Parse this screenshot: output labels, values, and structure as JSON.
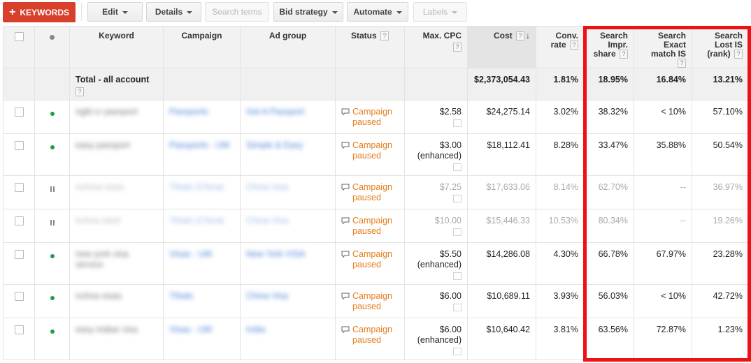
{
  "toolbar": {
    "keywords_label": "KEYWORDS",
    "edit_label": "Edit",
    "details_label": "Details",
    "search_terms_label": "Search terms",
    "bid_strategy_label": "Bid strategy",
    "automate_label": "Automate",
    "labels_label": "Labels",
    "accent_color": "#d9402b"
  },
  "table": {
    "headers": {
      "keyword": "Keyword",
      "campaign": "Campaign",
      "ad_group": "Ad group",
      "status": "Status",
      "max_cpc_l1": "Max. CPC",
      "cost": "Cost",
      "conv_rate_l1": "Conv.",
      "conv_rate_l2": "rate",
      "search_impr_share_l1": "Search",
      "search_impr_share_l2": "Impr.",
      "search_impr_share_l3": "share",
      "search_exact_match_is_l1": "Search",
      "search_exact_match_is_l2": "Exact",
      "search_exact_match_is_l3": "match IS",
      "search_lost_is_l1": "Search",
      "search_lost_is_l2": "Lost IS",
      "search_lost_is_l3": "(rank)",
      "help_glyph": "?"
    },
    "total": {
      "label": "Total - all account",
      "cost": "$2,373,054.43",
      "conv_rate": "1.81%",
      "search_impr_share": "18.95%",
      "search_exact_match_is": "16.84%",
      "search_lost_is_rank": "13.21%"
    },
    "rows": [
      {
        "state": "enabled",
        "keyword": "ngld cr passport",
        "campaign": "Passports",
        "ad_group": "Get A Passport",
        "status": "Campaign paused",
        "max_cpc": "$2.58",
        "max_cpc_note": "",
        "cost": "$24,275.14",
        "conv_rate": "3.02%",
        "search_impr_share": "38.32%",
        "search_exact_match_is": "< 10%",
        "search_lost_is_rank": "57.10%"
      },
      {
        "state": "enabled",
        "keyword": "easy passport",
        "campaign": "Passports - UM",
        "ad_group": "Simple & Easy",
        "status": "Campaign paused",
        "max_cpc": "$3.00",
        "max_cpc_note": "(enhanced)",
        "cost": "$18,112.41",
        "conv_rate": "8.28%",
        "search_impr_share": "33.47%",
        "search_exact_match_is": "35.88%",
        "search_lost_is_rank": "50.54%"
      },
      {
        "state": "paused",
        "keyword": "nchma visas",
        "campaign": "Tthals (China)",
        "ad_group": "China Visa",
        "status": "Campaign paused",
        "max_cpc": "$7.25",
        "max_cpc_note": "",
        "cost": "$17,633.06",
        "conv_rate": "8.14%",
        "search_impr_share": "62.70%",
        "search_exact_match_is": "--",
        "search_lost_is_rank": "36.97%"
      },
      {
        "state": "paused",
        "keyword": "hchna stasf",
        "campaign": "Tthals (China)",
        "ad_group": "China Visa",
        "status": "Campaign paused",
        "max_cpc": "$10.00",
        "max_cpc_note": "",
        "cost": "$15,446.33",
        "conv_rate": "10.53%",
        "search_impr_share": "80.34%",
        "search_exact_match_is": "--",
        "search_lost_is_rank": "19.26%"
      },
      {
        "state": "enabled",
        "keyword": "new york visa service",
        "campaign": "Visas - UM",
        "ad_group": "New York VISA",
        "status": "Campaign paused",
        "max_cpc": "$5.50",
        "max_cpc_note": "(enhanced)",
        "cost": "$14,286.08",
        "conv_rate": "4.30%",
        "search_impr_share": "66.78%",
        "search_exact_match_is": "67.97%",
        "search_lost_is_rank": "23.28%"
      },
      {
        "state": "enabled",
        "keyword": "nchna visas",
        "campaign": "Tthals",
        "ad_group": "China Visa",
        "status": "Campaign paused",
        "max_cpc": "$6.00",
        "max_cpc_note": "",
        "cost": "$10,689.11",
        "conv_rate": "3.93%",
        "search_impr_share": "56.03%",
        "search_exact_match_is": "< 10%",
        "search_lost_is_rank": "42.72%"
      },
      {
        "state": "enabled",
        "keyword": "easy indian visa",
        "campaign": "Visas - UM",
        "ad_group": "India",
        "status": "Campaign paused",
        "max_cpc": "$6.00",
        "max_cpc_note": "(enhanced)",
        "cost": "$10,640.42",
        "conv_rate": "3.81%",
        "search_impr_share": "63.56%",
        "search_exact_match_is": "72.87%",
        "search_lost_is_rank": "1.23%"
      }
    ]
  },
  "highlight_color": "#ee1111"
}
